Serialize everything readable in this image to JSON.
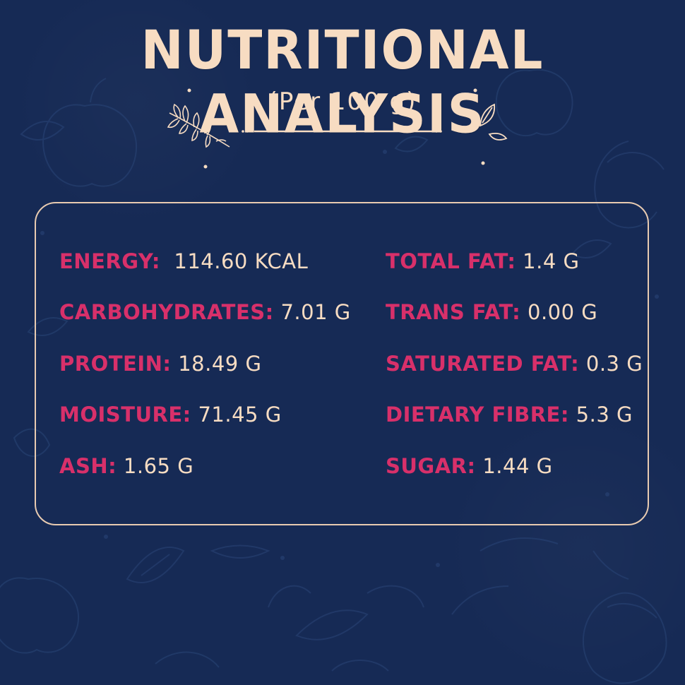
{
  "header": {
    "title": "NUTRITIONAL ANALYSIS",
    "subtitle": "(Per 100 g)"
  },
  "colors": {
    "background": "#162a55",
    "cream": "#f7dcc2",
    "label_pink": "#d8306a",
    "border": "#e8cbb1"
  },
  "nutrients": {
    "left": [
      {
        "label": "ENERGY:",
        "value": "114.60 KCAL"
      },
      {
        "label": "CARBOHYDRATES:",
        "value": "7.01 G"
      },
      {
        "label": "PROTEIN:",
        "value": "18.49 G"
      },
      {
        "label": "MOISTURE:",
        "value": "71.45 G"
      },
      {
        "label": "ASH:",
        "value": "1.65 G"
      }
    ],
    "right": [
      {
        "label": "TOTAL FAT:",
        "value": "1.4 G"
      },
      {
        "label": "TRANS FAT:",
        "value": "0.00 G"
      },
      {
        "label": "SATURATED FAT:",
        "value": "0.3 G"
      },
      {
        "label": "DIETARY FIBRE:",
        "value": "5.3 G"
      },
      {
        "label": "SUGAR:",
        "value": "1.44 G"
      }
    ]
  },
  "decorations": [
    "leaf-sprig-icon",
    "leaf-pair-icon",
    "divider-line"
  ]
}
